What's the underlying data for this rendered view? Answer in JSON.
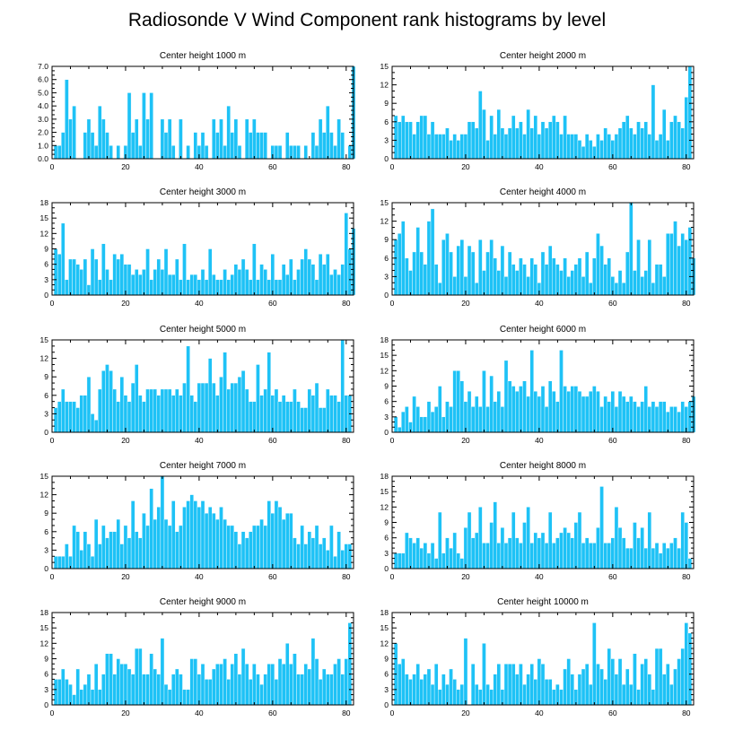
{
  "title": "Radiosonde V Wind Component rank histograms by level",
  "colors": {
    "bar": "#1ec2f6",
    "axis": "#000000",
    "background": "#ffffff"
  },
  "chart_data": [
    {
      "type": "bar",
      "title": "Center height 1000 m",
      "xlim": [
        0,
        82
      ],
      "ylim": [
        0,
        7
      ],
      "xticks": [
        0,
        20,
        40,
        60,
        80
      ],
      "yticks": [
        0,
        1,
        2,
        3,
        4,
        5,
        6,
        7
      ],
      "ytick_labels": [
        "0.0",
        "1.0",
        "2.0",
        "3.0",
        "4.0",
        "5.0",
        "6.0",
        "7.0"
      ],
      "values": [
        1,
        1,
        2,
        6,
        3,
        4,
        0,
        0,
        2,
        3,
        2,
        1,
        4,
        3,
        2,
        1,
        0,
        1,
        0,
        1,
        5,
        2,
        3,
        1,
        5,
        3,
        5,
        0,
        0,
        3,
        2,
        3,
        1,
        0,
        3,
        0,
        1,
        0,
        2,
        1,
        2,
        1,
        0,
        3,
        2,
        3,
        1,
        4,
        2,
        3,
        1,
        0,
        3,
        2,
        3,
        2,
        2,
        2,
        0,
        1,
        1,
        1,
        0,
        2,
        1,
        1,
        1,
        0,
        1,
        0,
        2,
        1,
        3,
        2,
        4,
        2,
        1,
        3,
        2,
        0,
        1,
        7
      ]
    },
    {
      "type": "bar",
      "title": "Center height 2000 m",
      "xlim": [
        0,
        82
      ],
      "ylim": [
        0,
        15
      ],
      "xticks": [
        0,
        20,
        40,
        60,
        80
      ],
      "yticks": [
        0,
        3,
        6,
        9,
        12,
        15
      ],
      "ytick_labels": [
        "0",
        "3",
        "6",
        "9",
        "12",
        "15"
      ],
      "values": [
        7,
        6,
        7,
        6,
        6,
        4,
        6,
        7,
        7,
        4,
        6,
        4,
        4,
        4,
        5,
        3,
        4,
        3,
        4,
        4,
        6,
        6,
        5,
        11,
        8,
        3,
        7,
        4,
        8,
        5,
        4,
        5,
        7,
        5,
        6,
        4,
        8,
        5,
        7,
        4,
        6,
        5,
        6,
        7,
        6,
        4,
        7,
        4,
        4,
        4,
        3,
        2,
        4,
        3,
        2,
        4,
        3,
        5,
        4,
        3,
        4,
        5,
        6,
        7,
        5,
        4,
        6,
        5,
        6,
        4,
        12,
        3,
        4,
        8,
        3,
        6,
        7,
        6,
        5,
        10,
        15
      ]
    },
    {
      "type": "bar",
      "title": "Center height 3000 m",
      "xlim": [
        0,
        82
      ],
      "ylim": [
        0,
        18
      ],
      "xticks": [
        0,
        20,
        40,
        60,
        80
      ],
      "yticks": [
        0,
        3,
        6,
        9,
        12,
        15,
        18
      ],
      "ytick_labels": [
        "0",
        "3",
        "6",
        "9",
        "12",
        "15",
        "18"
      ],
      "values": [
        9,
        8,
        14,
        3,
        7,
        7,
        6,
        5,
        7,
        2,
        9,
        7,
        3,
        10,
        5,
        3,
        8,
        7,
        8,
        6,
        6,
        4,
        5,
        4,
        5,
        9,
        3,
        5,
        7,
        5,
        9,
        4,
        4,
        7,
        3,
        10,
        3,
        4,
        4,
        3,
        5,
        3,
        9,
        4,
        3,
        3,
        5,
        3,
        4,
        6,
        5,
        7,
        5,
        3,
        10,
        3,
        6,
        5,
        3,
        8,
        3,
        3,
        6,
        4,
        7,
        3,
        5,
        7,
        9,
        7,
        6,
        3,
        8,
        6,
        8,
        4,
        5,
        4,
        6,
        16,
        9,
        13
      ]
    },
    {
      "type": "bar",
      "title": "Center height 4000 m",
      "xlim": [
        0,
        82
      ],
      "ylim": [
        0,
        15
      ],
      "xticks": [
        0,
        20,
        40,
        60,
        80
      ],
      "yticks": [
        0,
        3,
        6,
        9,
        12,
        15
      ],
      "ytick_labels": [
        "0",
        "3",
        "6",
        "9",
        "12",
        "15"
      ],
      "values": [
        9,
        10,
        12,
        6,
        4,
        7,
        11,
        7,
        5,
        12,
        14,
        5,
        2,
        9,
        10,
        7,
        3,
        8,
        9,
        3,
        8,
        7,
        2,
        9,
        4,
        7,
        9,
        6,
        4,
        8,
        3,
        7,
        5,
        4,
        6,
        5,
        3,
        6,
        5,
        2,
        7,
        5,
        8,
        6,
        5,
        4,
        6,
        3,
        4,
        5,
        6,
        3,
        7,
        2,
        6,
        10,
        8,
        5,
        6,
        3,
        2,
        4,
        2,
        7,
        15,
        4,
        9,
        3,
        4,
        9,
        2,
        5,
        5,
        3,
        10,
        10,
        12,
        8,
        10,
        9,
        11,
        6
      ]
    },
    {
      "type": "bar",
      "title": "Center height 5000 m",
      "xlim": [
        0,
        82
      ],
      "ylim": [
        0,
        15
      ],
      "xticks": [
        0,
        20,
        40,
        60,
        80
      ],
      "yticks": [
        0,
        3,
        6,
        9,
        12,
        15
      ],
      "ytick_labels": [
        "0",
        "3",
        "6",
        "9",
        "12",
        "15"
      ],
      "values": [
        4,
        5,
        7,
        5,
        5,
        5,
        4,
        6,
        6,
        9,
        3,
        2,
        7,
        10,
        11,
        10,
        7,
        5,
        9,
        6,
        5,
        8,
        11,
        6,
        5,
        7,
        7,
        7,
        6,
        7,
        7,
        7,
        6,
        7,
        6,
        8,
        14,
        6,
        5,
        8,
        8,
        8,
        12,
        8,
        6,
        9,
        13,
        7,
        8,
        8,
        9,
        10,
        7,
        5,
        5,
        11,
        6,
        7,
        13,
        6,
        7,
        5,
        6,
        5,
        5,
        7,
        5,
        4,
        4,
        7,
        6,
        8,
        4,
        4,
        7,
        6,
        6,
        5,
        15,
        6,
        6
      ]
    },
    {
      "type": "bar",
      "title": "Center height 6000 m",
      "xlim": [
        0,
        82
      ],
      "ylim": [
        0,
        18
      ],
      "xticks": [
        0,
        20,
        40,
        60,
        80
      ],
      "yticks": [
        0,
        3,
        6,
        9,
        12,
        15,
        18
      ],
      "ytick_labels": [
        "0",
        "3",
        "6",
        "9",
        "12",
        "15",
        "18"
      ],
      "values": [
        3,
        1,
        4,
        5,
        2,
        7,
        5,
        3,
        3,
        6,
        4,
        5,
        9,
        3,
        6,
        5,
        12,
        12,
        10,
        6,
        8,
        5,
        7,
        5,
        12,
        5,
        11,
        6,
        8,
        5,
        14,
        10,
        9,
        8,
        9,
        10,
        7,
        16,
        8,
        7,
        9,
        5,
        10,
        8,
        6,
        16,
        9,
        8,
        9,
        9,
        8,
        7,
        7,
        8,
        9,
        8,
        5,
        7,
        6,
        8,
        5,
        8,
        7,
        6,
        7,
        6,
        5,
        6,
        9,
        5,
        6,
        5,
        6,
        6,
        4,
        5,
        5,
        4,
        6,
        5,
        6,
        7
      ]
    },
    {
      "type": "bar",
      "title": "Center height 7000 m",
      "xlim": [
        0,
        82
      ],
      "ylim": [
        0,
        15
      ],
      "xticks": [
        0,
        20,
        40,
        60,
        80
      ],
      "yticks": [
        0,
        3,
        6,
        9,
        12,
        15
      ],
      "ytick_labels": [
        "0",
        "3",
        "6",
        "9",
        "12",
        "15"
      ],
      "values": [
        2,
        2,
        2,
        4,
        2,
        7,
        6,
        3,
        6,
        4,
        2,
        8,
        4,
        7,
        5,
        6,
        6,
        8,
        4,
        7,
        5,
        11,
        6,
        5,
        9,
        7,
        13,
        8,
        10,
        15,
        8,
        7,
        11,
        6,
        7,
        10,
        11,
        12,
        11,
        10,
        11,
        9,
        10,
        9,
        8,
        10,
        8,
        7,
        7,
        6,
        4,
        6,
        5,
        6,
        7,
        7,
        8,
        7,
        11,
        9,
        11,
        10,
        8,
        9,
        9,
        5,
        4,
        7,
        4,
        6,
        5,
        7,
        4,
        5,
        3,
        7,
        2,
        6,
        3,
        4,
        4
      ]
    },
    {
      "type": "bar",
      "title": "Center height 8000 m",
      "xlim": [
        0,
        82
      ],
      "ylim": [
        0,
        18
      ],
      "xticks": [
        0,
        20,
        40,
        60,
        80
      ],
      "yticks": [
        0,
        3,
        6,
        9,
        12,
        15,
        18
      ],
      "ytick_labels": [
        "0",
        "3",
        "6",
        "9",
        "12",
        "15",
        "18"
      ],
      "values": [
        3,
        3,
        3,
        7,
        6,
        5,
        6,
        4,
        5,
        3,
        5,
        2,
        11,
        3,
        6,
        4,
        7,
        3,
        2,
        8,
        11,
        6,
        7,
        12,
        5,
        5,
        9,
        13,
        5,
        8,
        5,
        6,
        11,
        6,
        5,
        9,
        12,
        5,
        7,
        6,
        7,
        5,
        11,
        5,
        6,
        7,
        8,
        7,
        6,
        9,
        11,
        5,
        6,
        5,
        5,
        8,
        16,
        5,
        5,
        6,
        12,
        8,
        6,
        4,
        4,
        9,
        6,
        8,
        4,
        11,
        4,
        5,
        3,
        5,
        4,
        5,
        6,
        4,
        11,
        9,
        2
      ]
    },
    {
      "type": "bar",
      "title": "Center height 9000 m",
      "xlim": [
        0,
        82
      ],
      "ylim": [
        0,
        18
      ],
      "xticks": [
        0,
        20,
        40,
        60,
        80
      ],
      "yticks": [
        0,
        3,
        6,
        9,
        12,
        15,
        18
      ],
      "ytick_labels": [
        "0",
        "3",
        "6",
        "9",
        "12",
        "15",
        "18"
      ],
      "values": [
        5,
        5,
        7,
        5,
        4,
        2,
        7,
        3,
        4,
        6,
        3,
        8,
        3,
        6,
        10,
        10,
        6,
        9,
        8,
        8,
        7,
        6,
        11,
        11,
        6,
        6,
        10,
        7,
        6,
        13,
        4,
        3,
        6,
        7,
        6,
        3,
        3,
        9,
        9,
        6,
        8,
        5,
        5,
        7,
        8,
        8,
        9,
        5,
        8,
        10,
        6,
        11,
        8,
        5,
        8,
        6,
        4,
        6,
        8,
        8,
        5,
        9,
        8,
        12,
        8,
        10,
        6,
        6,
        8,
        7,
        13,
        9,
        5,
        7,
        6,
        6,
        8,
        9,
        6,
        9,
        16
      ]
    },
    {
      "type": "bar",
      "title": "Center height 10000 m",
      "xlim": [
        0,
        82
      ],
      "ylim": [
        0,
        18
      ],
      "xticks": [
        0,
        20,
        40,
        60,
        80
      ],
      "yticks": [
        0,
        3,
        6,
        9,
        12,
        15,
        18
      ],
      "ytick_labels": [
        "0",
        "3",
        "6",
        "9",
        "12",
        "15",
        "18"
      ],
      "values": [
        12,
        8,
        9,
        6,
        5,
        6,
        8,
        5,
        6,
        7,
        4,
        8,
        3,
        6,
        4,
        7,
        5,
        3,
        4,
        13,
        0,
        8,
        4,
        3,
        12,
        4,
        3,
        6,
        8,
        3,
        8,
        8,
        8,
        6,
        8,
        4,
        6,
        8,
        5,
        9,
        8,
        5,
        5,
        3,
        4,
        3,
        7,
        9,
        6,
        3,
        6,
        7,
        8,
        4,
        16,
        8,
        7,
        5,
        11,
        9,
        6,
        9,
        4,
        7,
        4,
        10,
        3,
        8,
        9,
        6,
        3,
        11,
        11,
        6,
        8,
        4,
        7,
        9,
        11,
        16,
        14
      ]
    }
  ]
}
